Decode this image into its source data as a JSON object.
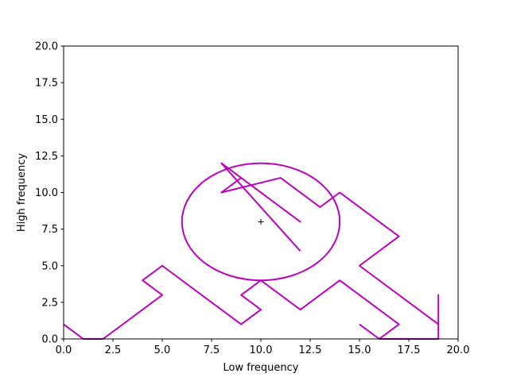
{
  "chart_data": {
    "type": "line",
    "title": "",
    "xlabel": "Low frequency",
    "ylabel": "High frequency",
    "xlim": [
      0,
      20
    ],
    "ylim": [
      0,
      20
    ],
    "grid": false,
    "x_ticks": [
      0,
      2.5,
      5,
      7.5,
      10,
      12.5,
      15,
      17.5,
      20
    ],
    "y_ticks": [
      0,
      2.5,
      5,
      7.5,
      10,
      12.5,
      15,
      17.5,
      20
    ],
    "x_tick_labels": [
      "0.0",
      "2.5",
      "5.0",
      "7.5",
      "10.0",
      "12.5",
      "15.0",
      "17.5",
      "20.0"
    ],
    "y_tick_labels": [
      "0.0",
      "2.5",
      "5.0",
      "7.5",
      "10.0",
      "12.5",
      "15.0",
      "17.5",
      "20.0"
    ],
    "color": "#bf00bf",
    "series": [
      {
        "values_xy": [
          [
            0,
            1
          ],
          [
            1,
            0
          ],
          [
            2,
            0
          ],
          [
            5,
            3
          ],
          [
            4,
            4
          ],
          [
            5,
            5
          ],
          [
            9,
            1
          ],
          [
            10,
            2
          ],
          [
            9,
            3
          ],
          [
            10,
            4
          ],
          [
            12,
            2
          ],
          [
            14,
            4
          ],
          [
            17,
            1
          ],
          [
            16,
            0
          ],
          [
            19,
            0
          ],
          [
            19,
            3
          ],
          [
            19,
            1
          ],
          [
            15,
            5
          ],
          [
            17,
            7
          ],
          [
            14,
            10
          ],
          [
            13,
            9
          ],
          [
            11,
            11
          ],
          [
            8,
            10
          ],
          [
            9,
            11
          ],
          [
            12,
            8
          ],
          [
            8,
            12
          ],
          [
            12,
            6
          ]
        ]
      },
      {
        "values_xy": [
          [
            15,
            1
          ],
          [
            16,
            0
          ]
        ]
      }
    ],
    "circle": {
      "center": [
        10,
        8
      ],
      "radius": 4
    },
    "center_marker": {
      "x": 10,
      "y": 8,
      "symbol": "+"
    }
  }
}
